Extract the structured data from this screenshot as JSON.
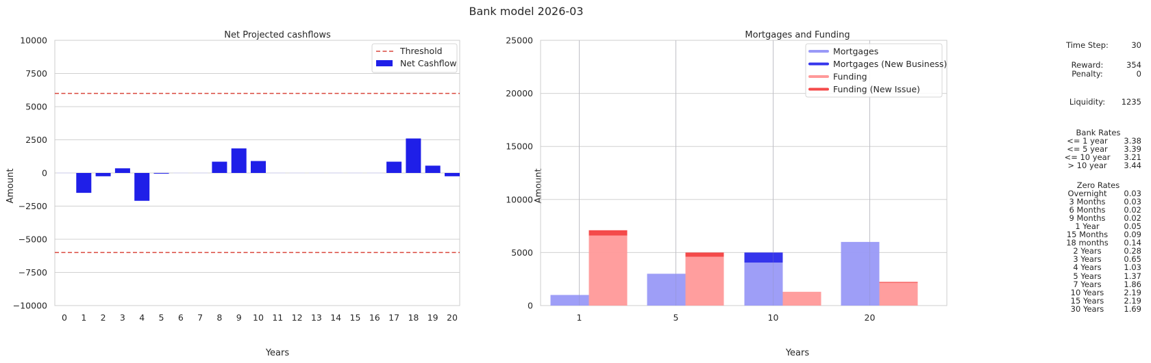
{
  "figure_title": "Bank model 2026-03",
  "chart_data": [
    {
      "type": "bar",
      "title": "Net Projected cashflows",
      "xlabel": "Years",
      "ylabel": "Amount",
      "ylim": [
        -10000,
        10000
      ],
      "yticks": [
        -10000,
        -7500,
        -5000,
        -2500,
        0,
        2500,
        5000,
        7500,
        10000
      ],
      "ytick_labels": [
        "−10000",
        "−7500",
        "−5000",
        "−2500",
        "0",
        "2500",
        "5000",
        "7500",
        "10000"
      ],
      "categories": [
        "0",
        "1",
        "2",
        "3",
        "4",
        "5",
        "6",
        "7",
        "8",
        "9",
        "10",
        "11",
        "12",
        "13",
        "14",
        "15",
        "16",
        "17",
        "18",
        "19",
        "20"
      ],
      "series": [
        {
          "name": "Net Cashflow",
          "color": "#1f1fe8",
          "values": [
            0,
            -1500,
            -250,
            350,
            -2100,
            -50,
            0,
            0,
            850,
            1850,
            900,
            0,
            0,
            0,
            0,
            0,
            0,
            850,
            2600,
            550,
            -250
          ]
        }
      ],
      "lines": [
        {
          "name": "Threshold",
          "style": "dashed",
          "color": "#d9453b",
          "values": [
            6000,
            -6000
          ]
        }
      ],
      "legend": [
        "Threshold",
        "Net Cashflow"
      ],
      "legend_position": "top-right",
      "grid": "horizontal"
    },
    {
      "type": "bar",
      "title": "Mortgages and Funding",
      "xlabel": "Years",
      "ylabel": "Amount",
      "ylim": [
        0,
        25000
      ],
      "yticks": [
        0,
        5000,
        10000,
        15000,
        20000,
        25000
      ],
      "ytick_labels": [
        "0",
        "5000",
        "10000",
        "15000",
        "20000",
        "25000"
      ],
      "categories": [
        "1",
        "5",
        "10",
        "20"
      ],
      "series": [
        {
          "name": "Mortgages",
          "color": "#9999f7",
          "values": [
            1000,
            3000,
            4050,
            6000
          ]
        },
        {
          "name": "Mortgages (New Business)",
          "color": "#3535ec",
          "values": [
            0,
            0,
            950,
            0
          ]
        },
        {
          "name": "Funding",
          "color": "#ff9999",
          "values": [
            6600,
            4600,
            1300,
            2150
          ]
        },
        {
          "name": "Funding (New Issue)",
          "color": "#f44a4a",
          "values": [
            500,
            400,
            0,
            80
          ]
        }
      ],
      "legend_position": "top-right",
      "grid": "both"
    }
  ],
  "panel": {
    "time_step_label": "Time Step:",
    "time_step_value": "30",
    "reward_label": "Reward:",
    "reward_value": "354",
    "penalty_label": "Penalty:",
    "penalty_value": "0",
    "liquidity_label": "Liquidity:",
    "liquidity_value": "1235",
    "bank_rates_title": "Bank Rates",
    "bank_rates": [
      {
        "label": "<= 1 year",
        "value": "3.38"
      },
      {
        "label": "<= 5 year",
        "value": "3.39"
      },
      {
        "label": "<= 10 year",
        "value": "3.21"
      },
      {
        "label": "> 10 year",
        "value": "3.44"
      }
    ],
    "zero_rates_title": "Zero Rates",
    "zero_rates": [
      {
        "label": "Overnight",
        "value": "0.03"
      },
      {
        "label": "3 Months",
        "value": "0.03"
      },
      {
        "label": "6 Months",
        "value": "0.02"
      },
      {
        "label": "9 Months",
        "value": "0.02"
      },
      {
        "label": "1 Year",
        "value": "0.05"
      },
      {
        "label": "15 Months",
        "value": "0.09"
      },
      {
        "label": "18 months",
        "value": "0.14"
      },
      {
        "label": "2 Years",
        "value": "0.28"
      },
      {
        "label": "3 Years",
        "value": "0.65"
      },
      {
        "label": "4 Years",
        "value": "1.03"
      },
      {
        "label": "5 Years",
        "value": "1.37"
      },
      {
        "label": "7 Years",
        "value": "1.86"
      },
      {
        "label": "10 Years",
        "value": "2.19"
      },
      {
        "label": "15 Years",
        "value": "2.19"
      },
      {
        "label": "30 Years",
        "value": "1.69"
      }
    ]
  }
}
